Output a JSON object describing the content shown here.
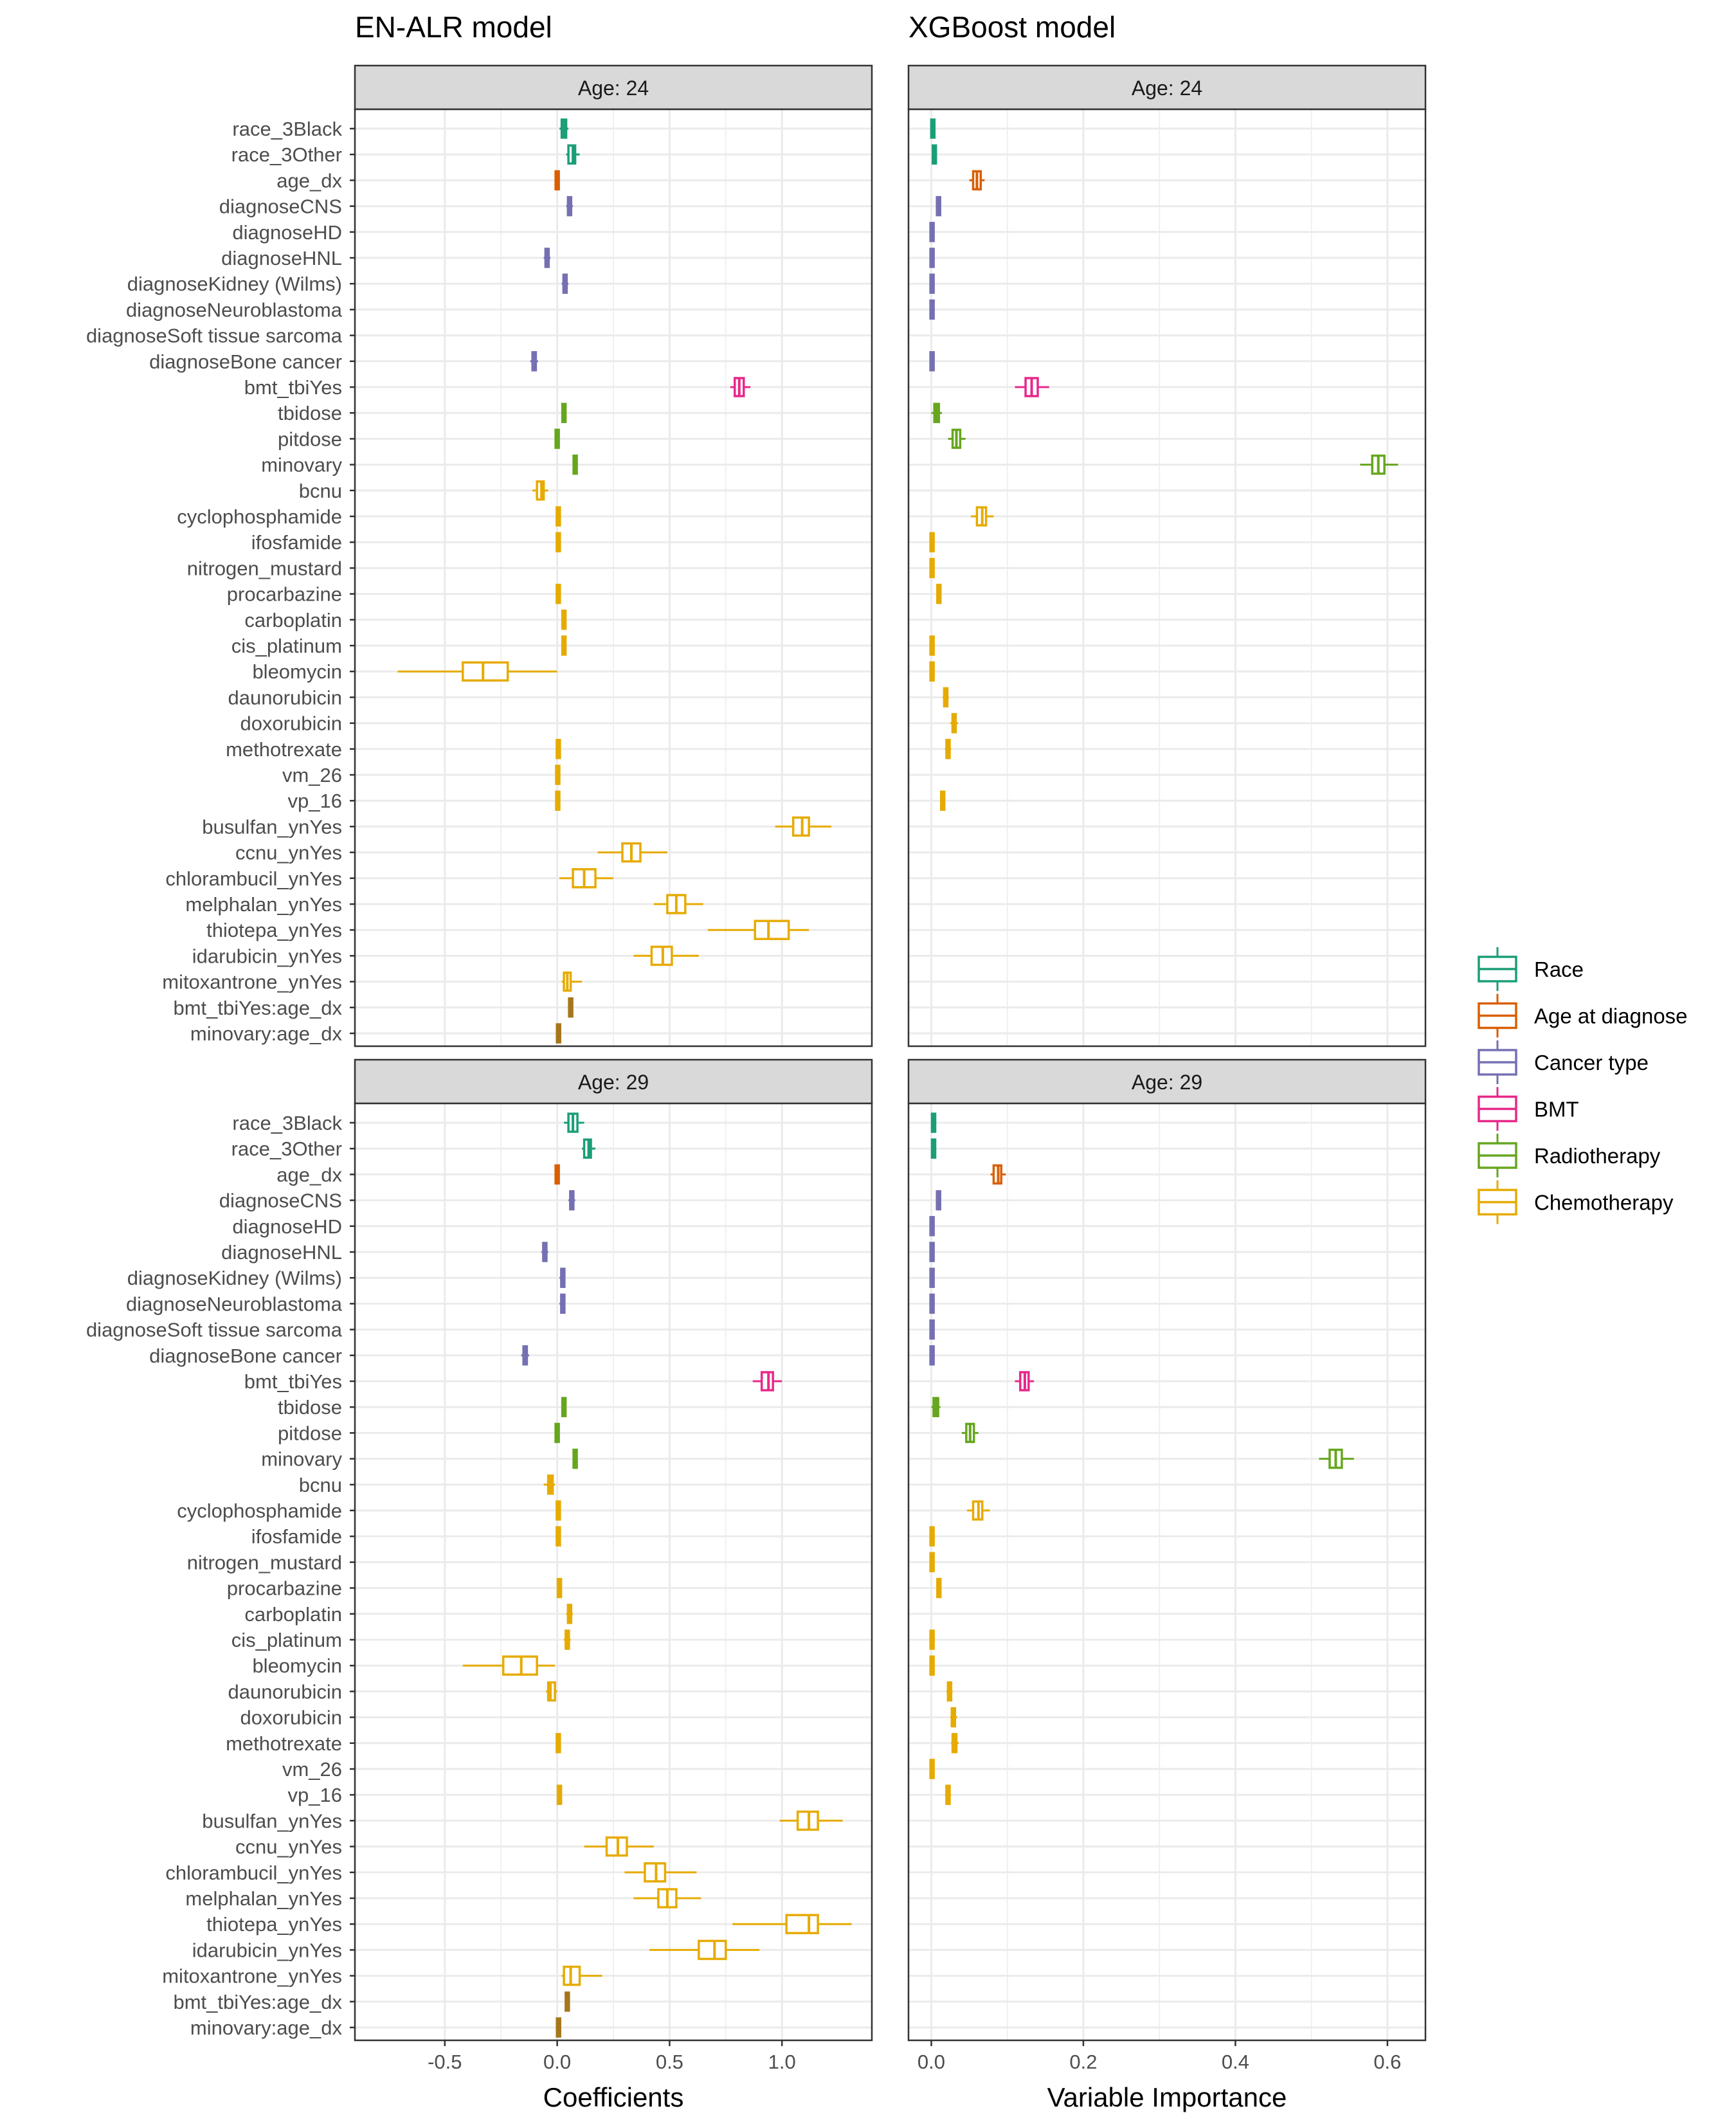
{
  "chart_data": {
    "type": "boxplot",
    "panel_titles": {
      "left": "EN-ALR model",
      "right": "XGBoost model"
    },
    "strip_labels": {
      "top": "Age:  24",
      "bottom": "Age:  29"
    },
    "xlabels": {
      "left": "Coefficients",
      "right": "Variable Importance"
    },
    "xlim_left": [
      -0.9,
      1.4
    ],
    "xlim_right": [
      -0.03,
      0.65
    ],
    "xticks_left": [
      {
        "v": -0.5,
        "label": "-0.5"
      },
      {
        "v": 0,
        "label": "0.0"
      },
      {
        "v": 0.5,
        "label": "0.5"
      },
      {
        "v": 1,
        "label": "1.0"
      }
    ],
    "xticks_right": [
      {
        "v": 0,
        "label": "0.0"
      },
      {
        "v": 0.2,
        "label": "0.2"
      },
      {
        "v": 0.4,
        "label": "0.4"
      },
      {
        "v": 0.6,
        "label": "0.6"
      }
    ],
    "categories": [
      "race_3Black",
      "race_3Other",
      "age_dx",
      "diagnoseCNS",
      "diagnoseHD",
      "diagnoseHNL",
      "diagnoseKidney (Wilms)",
      "diagnoseNeuroblastoma",
      "diagnoseSoft tissue sarcoma",
      "diagnoseBone cancer",
      "bmt_tbiYes",
      "tbidose",
      "pitdose",
      "minovary",
      "bcnu",
      "cyclophosphamide",
      "ifosfamide",
      "nitrogen_mustard",
      "procarbazine",
      "carboplatin",
      "cis_platinum",
      "bleomycin",
      "daunorubicin",
      "doxorubicin",
      "methotrexate",
      "vm_26",
      "vp_16",
      "busulfan_ynYes",
      "ccnu_ynYes",
      "chlorambucil_ynYes",
      "melphalan_ynYes",
      "thiotepa_ynYes",
      "idarubicin_ynYes",
      "mitoxantrone_ynYes",
      "bmt_tbiYes:age_dx",
      "minovary:age_dx"
    ],
    "category_groups": [
      "Race",
      "Race",
      "Age at diagnose",
      "Cancer type",
      "Cancer type",
      "Cancer type",
      "Cancer type",
      "Cancer type",
      "Cancer type",
      "Cancer type",
      "BMT",
      "Radiotherapy",
      "Radiotherapy",
      "Radiotherapy",
      "Chemotherapy",
      "Chemotherapy",
      "Chemotherapy",
      "Chemotherapy",
      "Chemotherapy",
      "Chemotherapy",
      "Chemotherapy",
      "Chemotherapy",
      "Chemotherapy",
      "Chemotherapy",
      "Chemotherapy",
      "Chemotherapy",
      "Chemotherapy",
      "Chemotherapy",
      "Chemotherapy",
      "Chemotherapy",
      "Chemotherapy",
      "Chemotherapy",
      "Chemotherapy",
      "Chemotherapy",
      "BMT",
      "Radiotherapy"
    ],
    "legend": [
      {
        "label": "Race",
        "color": "#1B9E77"
      },
      {
        "label": "Age at diagnose",
        "color": "#D95F02"
      },
      {
        "label": "Cancer type",
        "color": "#7570B3"
      },
      {
        "label": "BMT",
        "color": "#E7298A"
      },
      {
        "label": "Radiotherapy",
        "color": "#66A61E"
      },
      {
        "label": "Chemotherapy",
        "color": "#E6AB02"
      }
    ],
    "interaction_color": "#A6761D",
    "series": {
      "en_24": [
        [
          0.01,
          0.02,
          0.03,
          0.04,
          0.05
        ],
        [
          0.04,
          0.05,
          0.07,
          0.08,
          0.1
        ],
        [
          -0.01,
          -0.005,
          0.0,
          0.005,
          0.01
        ],
        [
          0.04,
          0.05,
          0.055,
          0.06,
          0.07
        ],
        null,
        [
          -0.06,
          -0.05,
          -0.045,
          -0.04,
          -0.03
        ],
        [
          0.02,
          0.03,
          0.035,
          0.04,
          0.05
        ],
        null,
        null,
        [
          -0.12,
          -0.11,
          -0.1,
          -0.095,
          -0.085
        ],
        [
          0.77,
          0.79,
          0.81,
          0.83,
          0.86
        ],
        [
          0.02,
          0.025,
          0.03,
          0.035,
          0.04
        ],
        [
          -0.01,
          -0.005,
          0.0,
          0.005,
          0.01
        ],
        [
          0.07,
          0.075,
          0.08,
          0.085,
          0.09
        ],
        [
          -0.11,
          -0.09,
          -0.07,
          -0.06,
          -0.04
        ],
        [
          0.0,
          0.002,
          0.005,
          0.008,
          0.01
        ],
        [
          0.0,
          0.002,
          0.005,
          0.008,
          0.01
        ],
        null,
        [
          0.0,
          0.002,
          0.005,
          0.008,
          0.01
        ],
        [
          0.02,
          0.025,
          0.03,
          0.035,
          0.04
        ],
        [
          0.02,
          0.025,
          0.03,
          0.035,
          0.04
        ],
        [
          -0.71,
          -0.42,
          -0.33,
          -0.22,
          0.0
        ],
        null,
        null,
        [
          0.0,
          0.002,
          0.005,
          0.008,
          0.01
        ],
        [
          -0.005,
          0.0,
          0.002,
          0.005,
          0.008
        ],
        [
          -0.005,
          0.0,
          0.002,
          0.005,
          0.008
        ],
        [
          0.97,
          1.05,
          1.09,
          1.12,
          1.22
        ],
        [
          0.18,
          0.29,
          0.33,
          0.37,
          0.49
        ],
        [
          0.01,
          0.07,
          0.12,
          0.17,
          0.25
        ],
        [
          0.43,
          0.49,
          0.53,
          0.57,
          0.65
        ],
        [
          0.67,
          0.88,
          0.94,
          1.03,
          1.12
        ],
        [
          0.34,
          0.42,
          0.47,
          0.51,
          0.63
        ],
        [
          0.02,
          0.03,
          0.045,
          0.06,
          0.11
        ],
        [
          0.055,
          0.058,
          0.06,
          0.062,
          0.065
        ],
        [
          0.0,
          0.003,
          0.006,
          0.009,
          0.012
        ]
      ],
      "xg_24": [
        [
          0.0,
          0.0,
          0.002,
          0.004,
          0.005
        ],
        [
          0.002,
          0.003,
          0.004,
          0.005,
          0.006
        ],
        [
          0.05,
          0.055,
          0.06,
          0.065,
          0.07
        ],
        [
          0.007,
          0.008,
          0.01,
          0.011,
          0.012
        ],
        [
          0.0,
          0.0,
          0.001,
          0.002,
          0.002
        ],
        [
          0.0,
          0.0,
          0.001,
          0.002,
          0.002
        ],
        [
          0.0,
          0.0,
          0.001,
          0.002,
          0.002
        ],
        [
          0.0,
          0.0,
          0.001,
          0.002,
          0.002
        ],
        null,
        [
          0.0,
          0.0,
          0.001,
          0.002,
          0.002
        ],
        [
          0.11,
          0.124,
          0.132,
          0.14,
          0.155
        ],
        [
          0.0,
          0.004,
          0.007,
          0.01,
          0.014
        ],
        [
          0.022,
          0.028,
          0.033,
          0.038,
          0.045
        ],
        [
          0.564,
          0.58,
          0.588,
          0.596,
          0.614
        ],
        null,
        [
          0.052,
          0.06,
          0.067,
          0.072,
          0.082
        ],
        [
          0.0,
          0.0,
          0.001,
          0.002,
          0.002
        ],
        [
          0.0,
          0.0,
          0.001,
          0.002,
          0.002
        ],
        [
          0.008,
          0.009,
          0.01,
          0.011,
          0.012
        ],
        null,
        [
          0.0,
          0.0,
          0.001,
          0.002,
          0.002
        ],
        [
          0.0,
          0.0,
          0.001,
          0.002,
          0.002
        ],
        [
          0.015,
          0.017,
          0.019,
          0.021,
          0.023
        ],
        [
          0.025,
          0.028,
          0.03,
          0.032,
          0.035
        ],
        [
          0.018,
          0.02,
          0.022,
          0.024,
          0.026
        ],
        null,
        [
          0.012,
          0.013,
          0.015,
          0.017,
          0.018
        ],
        null,
        null,
        null,
        null,
        null,
        null,
        null,
        null,
        null
      ],
      "en_29": [
        [
          0.03,
          0.05,
          0.07,
          0.09,
          0.12
        ],
        [
          0.11,
          0.12,
          0.14,
          0.15,
          0.17
        ],
        [
          -0.01,
          -0.005,
          0.0,
          0.005,
          0.01
        ],
        [
          0.05,
          0.06,
          0.065,
          0.07,
          0.08
        ],
        null,
        [
          -0.07,
          -0.06,
          -0.055,
          -0.05,
          -0.04
        ],
        [
          0.01,
          0.02,
          0.025,
          0.03,
          0.035
        ],
        [
          0.01,
          0.02,
          0.025,
          0.03,
          0.035
        ],
        null,
        [
          -0.16,
          -0.15,
          -0.14,
          -0.135,
          -0.125
        ],
        [
          0.87,
          0.91,
          0.94,
          0.96,
          1.0
        ],
        [
          0.02,
          0.025,
          0.03,
          0.035,
          0.04
        ],
        [
          -0.01,
          -0.005,
          0.0,
          0.005,
          0.01
        ],
        [
          0.07,
          0.075,
          0.08,
          0.085,
          0.09
        ],
        [
          -0.06,
          -0.04,
          -0.03,
          -0.02,
          -0.01
        ],
        [
          0.0,
          0.002,
          0.005,
          0.008,
          0.01
        ],
        [
          0.0,
          0.002,
          0.005,
          0.008,
          0.01
        ],
        null,
        [
          0.0,
          0.005,
          0.01,
          0.015,
          0.02
        ],
        [
          0.04,
          0.05,
          0.055,
          0.06,
          0.07
        ],
        [
          0.03,
          0.04,
          0.045,
          0.05,
          0.06
        ],
        [
          -0.42,
          -0.24,
          -0.16,
          -0.09,
          -0.01
        ],
        [
          -0.05,
          -0.04,
          -0.03,
          -0.01,
          0.0
        ],
        null,
        [
          0.0,
          0.002,
          0.005,
          0.008,
          0.01
        ],
        null,
        [
          0.0,
          0.005,
          0.01,
          0.015,
          0.02
        ],
        [
          0.99,
          1.07,
          1.12,
          1.16,
          1.27
        ],
        [
          0.12,
          0.22,
          0.27,
          0.31,
          0.43
        ],
        [
          0.3,
          0.39,
          0.44,
          0.48,
          0.62
        ],
        [
          0.34,
          0.45,
          0.49,
          0.53,
          0.64
        ],
        [
          0.78,
          1.02,
          1.12,
          1.16,
          1.31
        ],
        [
          0.41,
          0.63,
          0.7,
          0.75,
          0.9
        ],
        [
          0.02,
          0.03,
          0.06,
          0.1,
          0.2
        ],
        [
          0.035,
          0.04,
          0.045,
          0.05,
          0.055
        ],
        [
          0.0,
          0.003,
          0.006,
          0.009,
          0.012
        ]
      ],
      "xg_29": [
        [
          0.0,
          0.002,
          0.003,
          0.004,
          0.005
        ],
        [
          0.001,
          0.002,
          0.003,
          0.004,
          0.006
        ],
        [
          0.078,
          0.082,
          0.088,
          0.092,
          0.098
        ],
        [
          0.007,
          0.008,
          0.01,
          0.011,
          0.012
        ],
        [
          0.0,
          0.0,
          0.001,
          0.002,
          0.002
        ],
        [
          0.0,
          0.0,
          0.001,
          0.002,
          0.002
        ],
        [
          0.0,
          0.0,
          0.001,
          0.002,
          0.002
        ],
        [
          0.0,
          0.0,
          0.001,
          0.002,
          0.002
        ],
        [
          0.0,
          0.0,
          0.001,
          0.002,
          0.002
        ],
        [
          0.0,
          0.0,
          0.001,
          0.002,
          0.002
        ],
        [
          0.11,
          0.117,
          0.123,
          0.128,
          0.135
        ],
        [
          0.0,
          0.003,
          0.006,
          0.009,
          0.012
        ],
        [
          0.04,
          0.046,
          0.051,
          0.056,
          0.062
        ],
        [
          0.51,
          0.524,
          0.532,
          0.54,
          0.556
        ],
        null,
        [
          0.047,
          0.055,
          0.062,
          0.067,
          0.077
        ],
        [
          0.0,
          0.0,
          0.001,
          0.002,
          0.002
        ],
        [
          0.0,
          0.0,
          0.001,
          0.002,
          0.002
        ],
        [
          0.008,
          0.009,
          0.01,
          0.011,
          0.012
        ],
        null,
        [
          0.0,
          0.0,
          0.001,
          0.002,
          0.002
        ],
        [
          0.0,
          0.0,
          0.001,
          0.002,
          0.002
        ],
        [
          0.02,
          0.022,
          0.024,
          0.026,
          0.028
        ],
        [
          0.025,
          0.027,
          0.029,
          0.031,
          0.034
        ],
        [
          0.026,
          0.028,
          0.031,
          0.033,
          0.036
        ],
        [
          0.0,
          0.0,
          0.001,
          0.002,
          0.002
        ],
        [
          0.018,
          0.02,
          0.022,
          0.024,
          0.026
        ],
        null,
        null,
        null,
        null,
        null,
        null,
        null,
        null,
        null
      ]
    }
  }
}
